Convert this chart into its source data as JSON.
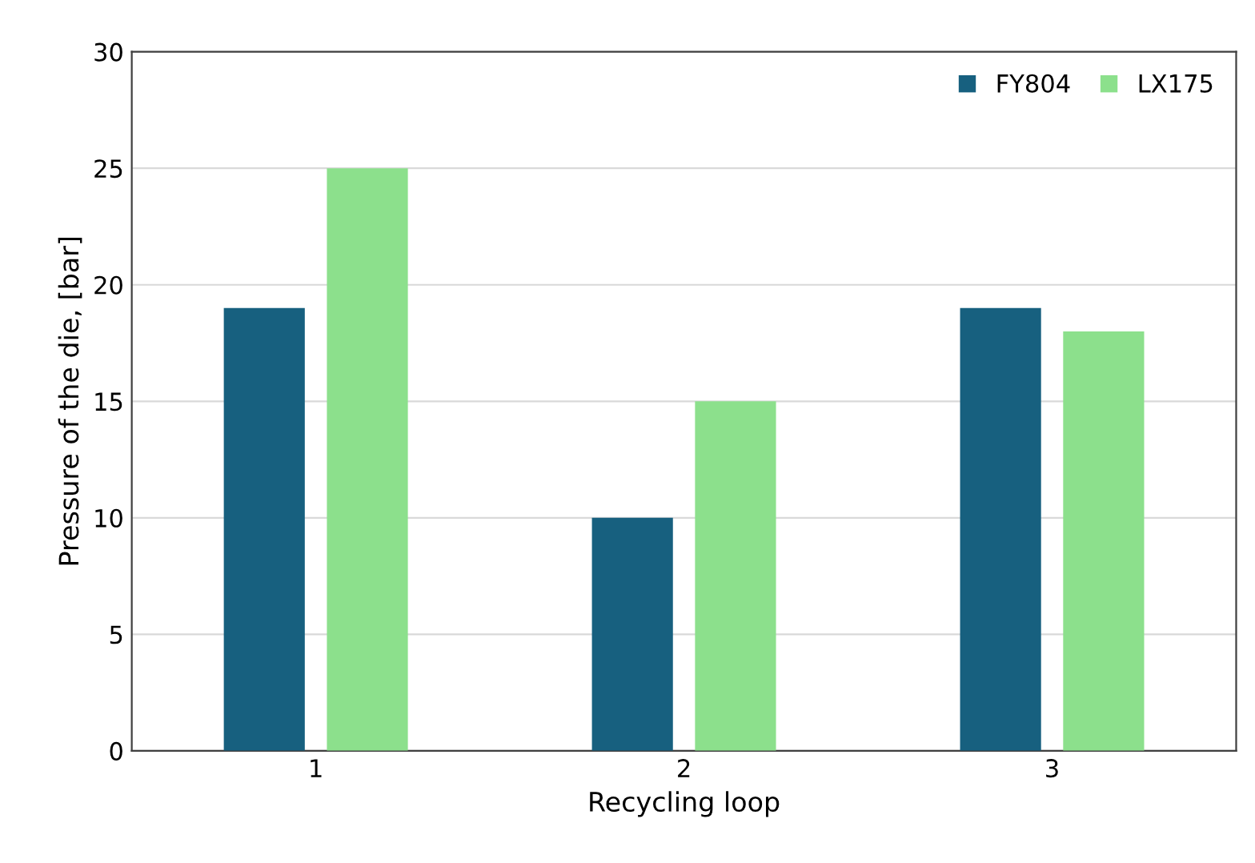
{
  "chart_data": {
    "type": "bar",
    "xlabel": "Recycling loop",
    "ylabel": "Pressure of the die, [bar]",
    "categories": [
      "1",
      "2",
      "3"
    ],
    "series": [
      {
        "name": "FY804",
        "color": "#17607f",
        "values": [
          19,
          10,
          19
        ]
      },
      {
        "name": "LX175",
        "color": "#8ce08c",
        "values": [
          25,
          15,
          18
        ]
      }
    ],
    "ylim": [
      0,
      30
    ],
    "yticks": [
      0,
      5,
      10,
      15,
      20,
      25,
      30
    ],
    "grid": "y",
    "legend": "top right"
  }
}
